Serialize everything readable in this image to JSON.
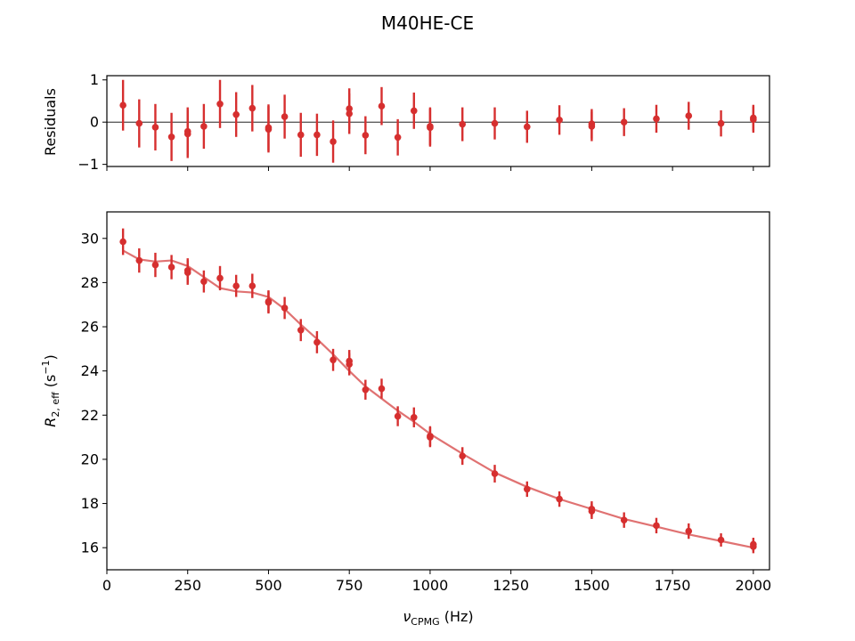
{
  "figure": {
    "title": "M40HE-CE"
  },
  "chart_data": [
    {
      "type": "scatter",
      "panel": "residuals",
      "ylabel": "Residuals",
      "xlim": [
        0,
        2050
      ],
      "ylim": [
        -1.05,
        1.1
      ],
      "xticks": [
        0,
        250,
        500,
        750,
        1000,
        1250,
        1500,
        1750,
        2000
      ],
      "yticks": [
        -1,
        0,
        1
      ],
      "ytick_labels": [
        "−1",
        "0",
        "1"
      ],
      "zero_line": true,
      "color": "#d62f2f",
      "x": [
        50,
        100,
        150,
        200,
        250,
        250,
        300,
        350,
        400,
        450,
        500,
        500,
        550,
        600,
        650,
        700,
        750,
        750,
        800,
        850,
        900,
        950,
        1000,
        1000,
        1100,
        1200,
        1300,
        1400,
        1500,
        1500,
        1600,
        1700,
        1800,
        1900,
        2000,
        2000
      ],
      "y": [
        0.4,
        -0.03,
        -0.12,
        -0.35,
        -0.22,
        -0.28,
        -0.1,
        0.43,
        0.18,
        0.33,
        -0.13,
        -0.17,
        0.13,
        -0.3,
        -0.3,
        -0.46,
        0.32,
        0.2,
        -0.31,
        0.38,
        -0.36,
        0.27,
        -0.1,
        -0.13,
        -0.05,
        -0.03,
        -0.11,
        0.05,
        -0.04,
        -0.1,
        0.0,
        0.08,
        0.15,
        -0.03,
        0.06,
        0.1
      ],
      "err": [
        0.6,
        0.57,
        0.55,
        0.57,
        0.57,
        0.57,
        0.53,
        0.57,
        0.53,
        0.55,
        0.55,
        0.55,
        0.52,
        0.52,
        0.5,
        0.5,
        0.48,
        0.48,
        0.45,
        0.45,
        0.43,
        0.43,
        0.45,
        0.45,
        0.4,
        0.38,
        0.38,
        0.35,
        0.35,
        0.35,
        0.33,
        0.33,
        0.33,
        0.31,
        0.31,
        0.31
      ]
    },
    {
      "type": "scatter",
      "panel": "main",
      "xlabel": "ν",
      "xlabel_sub": "CPMG",
      "xlabel_unit": " (Hz)",
      "ylabel_main": "R",
      "ylabel_sub": "2, eff",
      "ylabel_unit": " (s",
      "ylabel_sup": "−1",
      "ylabel_close": ")",
      "xlim": [
        0,
        2050
      ],
      "ylim": [
        15.0,
        31.2
      ],
      "xticks": [
        0,
        250,
        500,
        750,
        1000,
        1250,
        1500,
        1750,
        2000
      ],
      "yticks": [
        16,
        18,
        20,
        22,
        24,
        26,
        28,
        30
      ],
      "color": "#d62f2f",
      "fit_color": "#e07272",
      "x": [
        50,
        100,
        150,
        200,
        250,
        250,
        300,
        350,
        400,
        450,
        500,
        500,
        550,
        600,
        650,
        700,
        750,
        750,
        800,
        850,
        900,
        950,
        1000,
        1000,
        1100,
        1200,
        1300,
        1400,
        1500,
        1500,
        1600,
        1700,
        1800,
        1900,
        2000,
        2000
      ],
      "y": [
        29.85,
        29.0,
        28.8,
        28.7,
        28.55,
        28.45,
        28.05,
        28.2,
        27.85,
        27.85,
        27.15,
        27.1,
        26.85,
        25.85,
        25.3,
        24.5,
        24.45,
        24.3,
        23.15,
        23.2,
        21.95,
        21.9,
        21.05,
        21.0,
        20.15,
        19.35,
        18.65,
        18.2,
        17.75,
        17.65,
        17.25,
        17.0,
        16.75,
        16.35,
        16.15,
        16.05
      ],
      "err": [
        0.6,
        0.55,
        0.55,
        0.55,
        0.55,
        0.55,
        0.5,
        0.55,
        0.5,
        0.55,
        0.5,
        0.5,
        0.5,
        0.5,
        0.5,
        0.5,
        0.5,
        0.5,
        0.45,
        0.45,
        0.45,
        0.45,
        0.45,
        0.45,
        0.4,
        0.4,
        0.35,
        0.35,
        0.35,
        0.35,
        0.35,
        0.35,
        0.35,
        0.3,
        0.3,
        0.3
      ],
      "fit_x": [
        50,
        100,
        150,
        200,
        250,
        300,
        350,
        400,
        450,
        500,
        550,
        600,
        650,
        700,
        750,
        800,
        850,
        900,
        950,
        1000,
        1100,
        1200,
        1300,
        1400,
        1500,
        1600,
        1700,
        1800,
        1900,
        2000
      ],
      "fit_y": [
        29.45,
        29.05,
        28.95,
        29.0,
        28.75,
        28.25,
        27.75,
        27.6,
        27.55,
        27.35,
        26.8,
        26.1,
        25.45,
        24.75,
        24.0,
        23.3,
        22.75,
        22.2,
        21.7,
        21.15,
        20.25,
        19.4,
        18.75,
        18.2,
        17.75,
        17.3,
        16.95,
        16.6,
        16.3,
        16.0
      ]
    }
  ]
}
